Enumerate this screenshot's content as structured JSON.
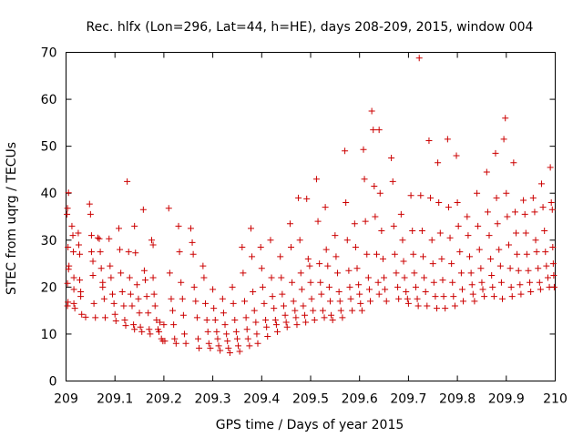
{
  "chart_data": {
    "type": "scatter",
    "title": "Rec. hlfx (Lon=296, Lat=44, h=HE), days 208-209, 2015, window 004",
    "xlabel": "GPS time / Days of year 2015",
    "ylabel": "STEC from uqrg / TECUs",
    "xlim": [
      209,
      210
    ],
    "ylim": [
      0,
      70
    ],
    "xticks": [
      "209",
      "209.1",
      "209.2",
      "209.3",
      "209.4",
      "209.5",
      "209.6",
      "209.7",
      "209.8",
      "209.9",
      "210"
    ],
    "yticks": [
      "0",
      "10",
      "20",
      "30",
      "40",
      "50",
      "60",
      "70"
    ],
    "marker": "+",
    "color": "#cc0000",
    "grid": false,
    "points": [
      [
        209.005,
        40.1
      ],
      [
        209.003,
        36.8
      ],
      [
        209.002,
        35.5
      ],
      [
        209.004,
        28.5
      ],
      [
        209.006,
        24.5
      ],
      [
        209.005,
        23.8
      ],
      [
        209.003,
        20.8
      ],
      [
        209.004,
        16.8
      ],
      [
        209.003,
        16.0
      ],
      [
        209.012,
        33.0
      ],
      [
        209.014,
        31.0
      ],
      [
        209.015,
        27.5
      ],
      [
        209.016,
        22.0
      ],
      [
        209.016,
        19.5
      ],
      [
        209.016,
        16.5
      ],
      [
        209.018,
        15.5
      ],
      [
        209.025,
        31.5
      ],
      [
        209.026,
        29.0
      ],
      [
        209.028,
        27.0
      ],
      [
        209.028,
        21.5
      ],
      [
        209.03,
        19.0
      ],
      [
        209.03,
        18.0
      ],
      [
        209.032,
        14.2
      ],
      [
        209.04,
        13.6
      ],
      [
        209.048,
        37.7
      ],
      [
        209.05,
        35.5
      ],
      [
        209.052,
        31.0
      ],
      [
        209.052,
        27.5
      ],
      [
        209.055,
        25.5
      ],
      [
        209.055,
        22.5
      ],
      [
        209.057,
        16.5
      ],
      [
        209.06,
        13.5
      ],
      [
        209.065,
        30.5
      ],
      [
        209.068,
        30.3
      ],
      [
        209.07,
        27.5
      ],
      [
        209.072,
        24.0
      ],
      [
        209.075,
        21.0
      ],
      [
        209.075,
        20.0
      ],
      [
        209.078,
        17.5
      ],
      [
        209.08,
        13.5
      ],
      [
        209.088,
        30.3
      ],
      [
        209.09,
        24.5
      ],
      [
        209.092,
        22.0
      ],
      [
        209.095,
        18.5
      ],
      [
        209.098,
        16.5
      ],
      [
        209.1,
        14.2
      ],
      [
        209.102,
        12.8
      ],
      [
        209.108,
        32.5
      ],
      [
        209.11,
        28.0
      ],
      [
        209.112,
        23.0
      ],
      [
        209.115,
        19.0
      ],
      [
        209.118,
        16.0
      ],
      [
        209.12,
        13.0
      ],
      [
        209.122,
        11.8
      ],
      [
        209.125,
        42.5
      ],
      [
        209.128,
        27.5
      ],
      [
        209.13,
        22.0
      ],
      [
        209.132,
        18.5
      ],
      [
        209.135,
        16.0
      ],
      [
        209.138,
        12.0
      ],
      [
        209.14,
        11.0
      ],
      [
        209.14,
        33.0
      ],
      [
        209.142,
        27.3
      ],
      [
        209.145,
        20.5
      ],
      [
        209.148,
        17.5
      ],
      [
        209.15,
        14.5
      ],
      [
        209.152,
        11.5
      ],
      [
        209.155,
        10.5
      ],
      [
        209.158,
        36.5
      ],
      [
        209.16,
        23.5
      ],
      [
        209.162,
        21.5
      ],
      [
        209.165,
        18.0
      ],
      [
        209.168,
        14.5
      ],
      [
        209.17,
        11.0
      ],
      [
        209.172,
        10.0
      ],
      [
        209.175,
        30.0
      ],
      [
        209.178,
        22.0
      ],
      [
        209.18,
        18.5
      ],
      [
        209.182,
        16.0
      ],
      [
        209.185,
        13.0
      ],
      [
        209.188,
        11.0
      ],
      [
        209.19,
        10.5
      ],
      [
        209.178,
        29.0
      ],
      [
        209.192,
        12.5
      ],
      [
        209.195,
        9.0
      ],
      [
        209.198,
        8.5
      ],
      [
        209.2,
        12.0
      ],
      [
        209.202,
        8.5
      ],
      [
        209.21,
        36.8
      ],
      [
        209.212,
        23.0
      ],
      [
        209.215,
        17.5
      ],
      [
        209.218,
        15.0
      ],
      [
        209.22,
        12.0
      ],
      [
        209.222,
        9.0
      ],
      [
        209.225,
        8.0
      ],
      [
        209.23,
        33.0
      ],
      [
        209.232,
        27.5
      ],
      [
        209.235,
        21.0
      ],
      [
        209.238,
        17.5
      ],
      [
        209.24,
        14.0
      ],
      [
        209.242,
        10.0
      ],
      [
        209.245,
        8.0
      ],
      [
        209.255,
        32.5
      ],
      [
        209.258,
        29.5
      ],
      [
        209.26,
        27.0
      ],
      [
        209.262,
        20.0
      ],
      [
        209.265,
        17.0
      ],
      [
        209.268,
        13.5
      ],
      [
        209.27,
        9.0
      ],
      [
        209.272,
        7.0
      ],
      [
        209.28,
        24.5
      ],
      [
        209.282,
        22.0
      ],
      [
        209.285,
        16.5
      ],
      [
        209.288,
        13.0
      ],
      [
        209.29,
        10.5
      ],
      [
        209.292,
        8.0
      ],
      [
        209.295,
        7.0
      ],
      [
        209.3,
        19.5
      ],
      [
        209.302,
        15.5
      ],
      [
        209.305,
        13.0
      ],
      [
        209.308,
        10.5
      ],
      [
        209.31,
        9.0
      ],
      [
        209.312,
        7.5
      ],
      [
        209.315,
        6.5
      ],
      [
        209.32,
        17.5
      ],
      [
        209.322,
        14.5
      ],
      [
        209.325,
        12.0
      ],
      [
        209.328,
        10.0
      ],
      [
        209.33,
        8.5
      ],
      [
        209.332,
        7.0
      ],
      [
        209.335,
        6.0
      ],
      [
        209.34,
        20.0
      ],
      [
        209.342,
        16.5
      ],
      [
        209.345,
        13.0
      ],
      [
        209.348,
        10.5
      ],
      [
        209.35,
        9.0
      ],
      [
        209.352,
        7.5
      ],
      [
        209.355,
        6.3
      ],
      [
        209.36,
        28.5
      ],
      [
        209.362,
        23.0
      ],
      [
        209.365,
        17.0
      ],
      [
        209.368,
        13.5
      ],
      [
        209.37,
        11.0
      ],
      [
        209.372,
        9.0
      ],
      [
        209.375,
        7.5
      ],
      [
        209.378,
        32.5
      ],
      [
        209.38,
        26.5
      ],
      [
        209.382,
        19.0
      ],
      [
        209.385,
        15.0
      ],
      [
        209.388,
        12.5
      ],
      [
        209.39,
        10.0
      ],
      [
        209.392,
        8.0
      ],
      [
        209.398,
        28.5
      ],
      [
        209.4,
        24.0
      ],
      [
        209.402,
        20.0
      ],
      [
        209.405,
        16.5
      ],
      [
        209.408,
        13.0
      ],
      [
        209.41,
        11.5
      ],
      [
        209.412,
        9.5
      ],
      [
        209.418,
        30.0
      ],
      [
        209.42,
        22.0
      ],
      [
        209.422,
        18.0
      ],
      [
        209.425,
        15.5
      ],
      [
        209.428,
        13.0
      ],
      [
        209.43,
        12.0
      ],
      [
        209.432,
        10.5
      ],
      [
        209.438,
        26.5
      ],
      [
        209.44,
        22.0
      ],
      [
        209.442,
        18.5
      ],
      [
        209.445,
        16.0
      ],
      [
        209.448,
        14.0
      ],
      [
        209.45,
        12.5
      ],
      [
        209.452,
        11.5
      ],
      [
        209.458,
        33.5
      ],
      [
        209.46,
        28.5
      ],
      [
        209.462,
        21.0
      ],
      [
        209.465,
        17.0
      ],
      [
        209.468,
        15.0
      ],
      [
        209.47,
        13.5
      ],
      [
        209.472,
        12.0
      ],
      [
        209.475,
        39.0
      ],
      [
        209.478,
        30.0
      ],
      [
        209.48,
        23.0
      ],
      [
        209.482,
        19.5
      ],
      [
        209.485,
        16.0
      ],
      [
        209.488,
        14.0
      ],
      [
        209.49,
        12.5
      ],
      [
        209.492,
        38.8
      ],
      [
        209.495,
        26.0
      ],
      [
        209.498,
        24.5
      ],
      [
        209.5,
        21.0
      ],
      [
        209.502,
        17.5
      ],
      [
        209.505,
        15.0
      ],
      [
        209.508,
        13.0
      ],
      [
        209.512,
        43.0
      ],
      [
        209.515,
        34.0
      ],
      [
        209.518,
        25.0
      ],
      [
        209.52,
        21.0
      ],
      [
        209.522,
        18.5
      ],
      [
        209.525,
        15.0
      ],
      [
        209.528,
        13.5
      ],
      [
        209.53,
        37.0
      ],
      [
        209.532,
        28.0
      ],
      [
        209.535,
        24.5
      ],
      [
        209.538,
        20.0
      ],
      [
        209.54,
        17.0
      ],
      [
        209.542,
        14.0
      ],
      [
        209.545,
        13.0
      ],
      [
        209.55,
        31.0
      ],
      [
        209.552,
        26.5
      ],
      [
        209.555,
        23.0
      ],
      [
        209.558,
        19.0
      ],
      [
        209.56,
        17.0
      ],
      [
        209.562,
        15.0
      ],
      [
        209.565,
        13.5
      ],
      [
        209.57,
        49.0
      ],
      [
        209.572,
        38.0
      ],
      [
        209.575,
        30.0
      ],
      [
        209.578,
        23.5
      ],
      [
        209.58,
        20.0
      ],
      [
        209.582,
        17.5
      ],
      [
        209.585,
        15.0
      ],
      [
        209.59,
        33.5
      ],
      [
        209.592,
        28.5
      ],
      [
        209.595,
        24.0
      ],
      [
        209.598,
        20.5
      ],
      [
        209.6,
        18.5
      ],
      [
        209.602,
        16.5
      ],
      [
        209.605,
        15.0
      ],
      [
        209.608,
        49.3
      ],
      [
        209.61,
        43.0
      ],
      [
        209.612,
        34.0
      ],
      [
        209.615,
        27.0
      ],
      [
        209.618,
        22.0
      ],
      [
        209.62,
        19.5
      ],
      [
        209.622,
        17.0
      ],
      [
        209.625,
        57.5
      ],
      [
        209.628,
        53.5
      ],
      [
        209.63,
        41.5
      ],
      [
        209.632,
        35.0
      ],
      [
        209.635,
        27.0
      ],
      [
        209.638,
        21.0
      ],
      [
        209.64,
        18.5
      ],
      [
        209.64,
        53.5
      ],
      [
        209.642,
        40.0
      ],
      [
        209.645,
        32.0
      ],
      [
        209.648,
        26.0
      ],
      [
        209.65,
        22.0
      ],
      [
        209.652,
        19.5
      ],
      [
        209.655,
        17.0
      ],
      [
        209.665,
        47.5
      ],
      [
        209.668,
        42.5
      ],
      [
        209.67,
        33.0
      ],
      [
        209.672,
        27.0
      ],
      [
        209.675,
        23.0
      ],
      [
        209.678,
        20.0
      ],
      [
        209.68,
        17.5
      ],
      [
        209.685,
        35.5
      ],
      [
        209.688,
        30.0
      ],
      [
        209.69,
        25.5
      ],
      [
        209.692,
        22.0
      ],
      [
        209.695,
        19.0
      ],
      [
        209.698,
        17.5
      ],
      [
        209.7,
        16.5
      ],
      [
        209.705,
        39.5
      ],
      [
        209.708,
        32.0
      ],
      [
        209.71,
        27.0
      ],
      [
        209.712,
        23.0
      ],
      [
        209.715,
        20.0
      ],
      [
        209.718,
        17.5
      ],
      [
        209.72,
        16.0
      ],
      [
        209.722,
        68.8
      ],
      [
        209.725,
        39.5
      ],
      [
        209.728,
        32.0
      ],
      [
        209.73,
        26.5
      ],
      [
        209.732,
        22.0
      ],
      [
        209.735,
        19.0
      ],
      [
        209.738,
        16.0
      ],
      [
        209.742,
        51.2
      ],
      [
        209.745,
        39.0
      ],
      [
        209.748,
        30.0
      ],
      [
        209.75,
        25.0
      ],
      [
        209.752,
        21.0
      ],
      [
        209.755,
        18.0
      ],
      [
        209.758,
        15.5
      ],
      [
        209.76,
        46.5
      ],
      [
        209.762,
        38.0
      ],
      [
        209.765,
        31.5
      ],
      [
        209.768,
        26.0
      ],
      [
        209.77,
        21.5
      ],
      [
        209.772,
        18.0
      ],
      [
        209.775,
        15.5
      ],
      [
        209.78,
        51.5
      ],
      [
        209.782,
        37.0
      ],
      [
        209.785,
        30.5
      ],
      [
        209.788,
        25.0
      ],
      [
        209.79,
        21.0
      ],
      [
        209.792,
        18.0
      ],
      [
        209.795,
        16.0
      ],
      [
        209.798,
        48.0
      ],
      [
        209.8,
        38.0
      ],
      [
        209.802,
        33.0
      ],
      [
        209.805,
        27.5
      ],
      [
        209.808,
        23.0
      ],
      [
        209.81,
        19.5
      ],
      [
        209.812,
        17.0
      ],
      [
        209.82,
        35.0
      ],
      [
        209.822,
        31.0
      ],
      [
        209.825,
        26.5
      ],
      [
        209.828,
        23.0
      ],
      [
        209.83,
        20.5
      ],
      [
        209.832,
        18.5
      ],
      [
        209.835,
        17.0
      ],
      [
        209.84,
        40.0
      ],
      [
        209.842,
        33.0
      ],
      [
        209.845,
        28.0
      ],
      [
        209.848,
        24.0
      ],
      [
        209.85,
        21.0
      ],
      [
        209.852,
        19.5
      ],
      [
        209.855,
        18.0
      ],
      [
        209.86,
        44.5
      ],
      [
        209.862,
        36.0
      ],
      [
        209.865,
        31.0
      ],
      [
        209.868,
        26.0
      ],
      [
        209.87,
        22.5
      ],
      [
        209.872,
        20.0
      ],
      [
        209.875,
        18.0
      ],
      [
        209.878,
        48.5
      ],
      [
        209.88,
        39.0
      ],
      [
        209.882,
        33.5
      ],
      [
        209.885,
        28.0
      ],
      [
        209.888,
        24.5
      ],
      [
        209.89,
        21.0
      ],
      [
        209.892,
        17.5
      ],
      [
        209.895,
        51.5
      ],
      [
        209.898,
        56.0
      ],
      [
        209.9,
        40.0
      ],
      [
        209.902,
        35.0
      ],
      [
        209.905,
        29.0
      ],
      [
        209.908,
        24.0
      ],
      [
        209.91,
        20.0
      ],
      [
        209.912,
        18.0
      ],
      [
        209.915,
        46.5
      ],
      [
        209.918,
        36.0
      ],
      [
        209.92,
        31.5
      ],
      [
        209.922,
        27.0
      ],
      [
        209.925,
        23.5
      ],
      [
        209.928,
        20.5
      ],
      [
        209.93,
        18.5
      ],
      [
        209.935,
        38.5
      ],
      [
        209.938,
        35.5
      ],
      [
        209.94,
        31.5
      ],
      [
        209.942,
        27.0
      ],
      [
        209.945,
        23.5
      ],
      [
        209.948,
        21.0
      ],
      [
        209.95,
        19.0
      ],
      [
        209.955,
        39.0
      ],
      [
        209.958,
        36.0
      ],
      [
        209.96,
        30.0
      ],
      [
        209.962,
        27.5
      ],
      [
        209.965,
        24.0
      ],
      [
        209.968,
        21.0
      ],
      [
        209.97,
        19.5
      ],
      [
        209.972,
        42.0
      ],
      [
        209.975,
        37.0
      ],
      [
        209.978,
        32.0
      ],
      [
        209.98,
        27.5
      ],
      [
        209.982,
        24.5
      ],
      [
        209.985,
        22.0
      ],
      [
        209.988,
        20.0
      ],
      [
        209.99,
        45.5
      ],
      [
        209.992,
        38.0
      ],
      [
        209.994,
        36.5
      ],
      [
        209.995,
        28.5
      ],
      [
        209.996,
        25.0
      ],
      [
        209.997,
        22.5
      ],
      [
        209.998,
        20.0
      ]
    ]
  }
}
